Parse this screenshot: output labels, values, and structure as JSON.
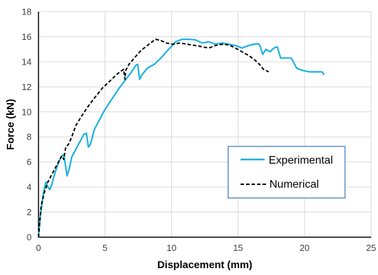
{
  "chart_data": {
    "type": "line",
    "title": "",
    "xlabel": "Displacement (mm)",
    "ylabel": "Force (kN)",
    "xlim": [
      0,
      25
    ],
    "ylim": [
      0,
      18
    ],
    "xticks": [
      0,
      5,
      10,
      15,
      20,
      25
    ],
    "yticks": [
      0,
      2,
      4,
      6,
      8,
      10,
      12,
      14,
      16,
      18
    ],
    "grid": true,
    "legend_position": "center-right",
    "series": [
      {
        "name": "Experimental",
        "color": "#1ab0e0",
        "style": "solid",
        "x": [
          0,
          0.15,
          0.35,
          0.55,
          0.7,
          0.85,
          1.0,
          1.2,
          1.45,
          1.7,
          1.9,
          2.05,
          2.15,
          2.3,
          2.5,
          2.8,
          3.1,
          3.4,
          3.6,
          3.75,
          3.9,
          4.2,
          4.6,
          5.0,
          5.5,
          6.0,
          6.5,
          7.0,
          7.3,
          7.45,
          7.6,
          7.8,
          8.2,
          8.7,
          9.2,
          9.7,
          10.3,
          10.8,
          11.3,
          11.8,
          12.3,
          12.8,
          13.3,
          13.8,
          14.3,
          14.8,
          15.3,
          15.8,
          16.2,
          16.5,
          16.65,
          16.85,
          17.1,
          17.4,
          17.7,
          17.95,
          18.2,
          18.6,
          19.0,
          19.4,
          19.6,
          19.9,
          20.3,
          20.7,
          21.0,
          21.3,
          21.45
        ],
        "y": [
          0,
          1.8,
          3.4,
          4.4,
          4.0,
          3.8,
          4.2,
          5.0,
          5.8,
          6.4,
          6.6,
          5.6,
          4.9,
          5.4,
          6.4,
          7.0,
          7.6,
          8.2,
          8.3,
          7.2,
          7.4,
          8.6,
          9.4,
          10.2,
          11.0,
          11.8,
          12.5,
          13.2,
          13.7,
          13.8,
          12.6,
          13.0,
          13.5,
          13.8,
          14.3,
          14.9,
          15.6,
          15.8,
          15.8,
          15.75,
          15.5,
          15.6,
          15.4,
          15.5,
          15.4,
          15.3,
          15.1,
          15.3,
          15.4,
          15.45,
          15.3,
          14.6,
          15.0,
          14.8,
          15.1,
          15.2,
          14.3,
          14.3,
          14.3,
          13.5,
          13.4,
          13.3,
          13.2,
          13.2,
          13.2,
          13.2,
          13.0
        ]
      },
      {
        "name": "Numerical",
        "color": "#000000",
        "style": "dashed",
        "x": [
          0,
          0.2,
          0.45,
          0.7,
          0.95,
          1.2,
          1.5,
          1.75,
          1.9,
          2.05,
          2.25,
          2.5,
          2.8,
          3.2,
          3.7,
          4.2,
          4.8,
          5.4,
          6.0,
          6.4,
          6.5,
          6.55,
          6.8,
          7.2,
          7.7,
          8.3,
          8.8,
          9.2,
          9.6,
          10.1,
          10.6,
          11.2,
          11.8,
          12.3,
          12.8,
          13.3,
          13.8,
          14.3,
          14.8,
          15.3,
          15.8,
          16.2,
          16.5,
          16.7,
          16.9,
          17.1,
          17.3
        ],
        "y": [
          0,
          2.5,
          3.6,
          4.4,
          4.9,
          5.4,
          6.0,
          6.5,
          6.2,
          7.2,
          7.4,
          8.0,
          8.9,
          9.6,
          10.4,
          11.1,
          11.9,
          12.5,
          13.1,
          13.4,
          12.6,
          13.3,
          13.8,
          14.3,
          14.9,
          15.4,
          15.8,
          15.7,
          15.5,
          15.4,
          15.5,
          15.4,
          15.3,
          15.2,
          15.1,
          15.3,
          15.4,
          15.35,
          15.1,
          14.8,
          14.5,
          14.2,
          13.9,
          13.7,
          13.4,
          13.3,
          13.2
        ]
      }
    ]
  }
}
